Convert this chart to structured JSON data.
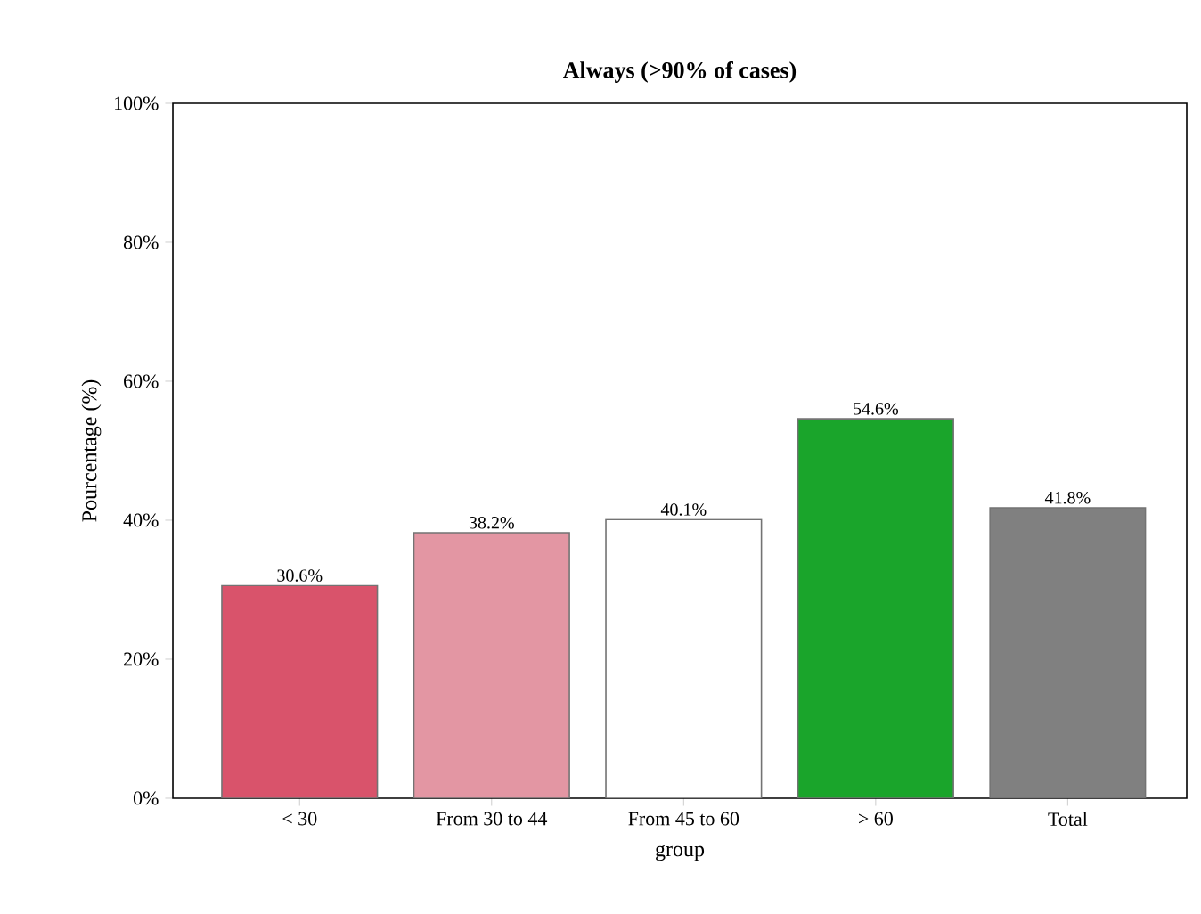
{
  "chart_data": {
    "type": "bar",
    "title": "Always (>90% of cases)",
    "xlabel": "group",
    "ylabel": "Pourcentage (%)",
    "categories": [
      "< 30",
      "From 30 to 44",
      "From 45 to 60",
      "> 60",
      "Total"
    ],
    "values": [
      30.6,
      38.2,
      40.1,
      54.6,
      41.8
    ],
    "colors": [
      "#d9536b",
      "#e396a3",
      "#ffffff",
      "#1aa52b",
      "#808080"
    ],
    "value_labels": [
      "30.6%",
      "38.2%",
      "40.1%",
      "54.6%",
      "41.8%"
    ],
    "ylim": [
      0,
      100
    ],
    "yticks": [
      {
        "value": 0,
        "label": "0%"
      },
      {
        "value": 20,
        "label": "20%"
      },
      {
        "value": 40,
        "label": "40%"
      },
      {
        "value": 60,
        "label": "60%"
      },
      {
        "value": 80,
        "label": "80%"
      },
      {
        "value": 100,
        "label": "100%"
      }
    ],
    "grid": false
  }
}
